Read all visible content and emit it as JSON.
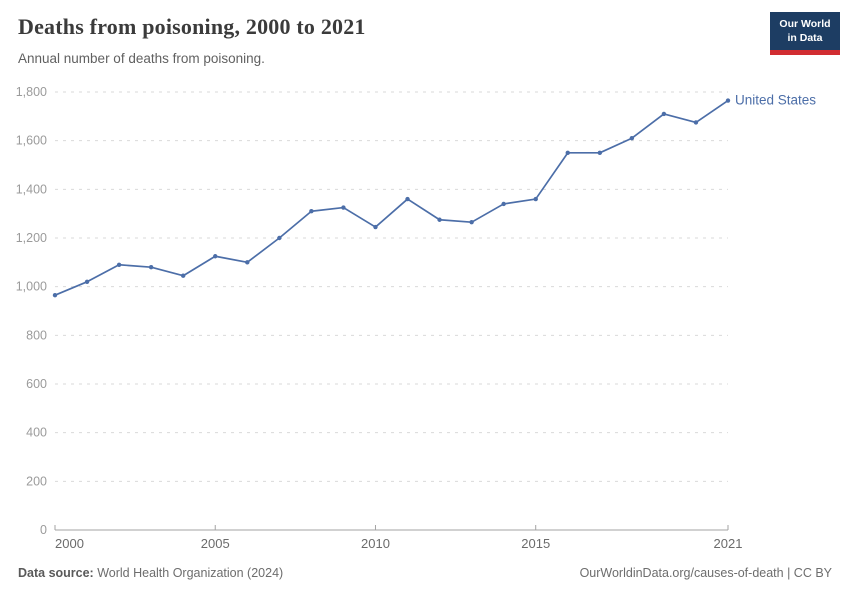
{
  "header": {
    "title": "Deaths from poisoning, 2000 to 2021",
    "subtitle": "Annual number of deaths from poisoning.",
    "logo": {
      "line1": "Our World",
      "line2": "in Data",
      "bg_color": "#1d3d63",
      "accent_color": "#d12d31"
    }
  },
  "chart_data": {
    "type": "line",
    "title": "Deaths from poisoning, 2000 to 2021",
    "x": [
      2000,
      2001,
      2002,
      2003,
      2004,
      2005,
      2006,
      2007,
      2008,
      2009,
      2010,
      2011,
      2012,
      2013,
      2014,
      2015,
      2016,
      2017,
      2018,
      2019,
      2020,
      2021
    ],
    "series": [
      {
        "name": "United States",
        "color": "#4c6ea8",
        "values": [
          965,
          1020,
          1090,
          1080,
          1045,
          1125,
          1100,
          1200,
          1310,
          1325,
          1245,
          1360,
          1275,
          1265,
          1340,
          1360,
          1550,
          1550,
          1610,
          1710,
          1675,
          1765
        ]
      }
    ],
    "xlabel": "",
    "ylabel": "",
    "ylim": [
      0,
      1800
    ],
    "yticks": [
      0,
      200,
      400,
      600,
      800,
      1000,
      1200,
      1400,
      1600,
      1800
    ],
    "xticks": [
      2000,
      2005,
      2010,
      2015,
      2021
    ],
    "grid": "horizontal-dashed",
    "legend": "end-of-line-label"
  },
  "footer": {
    "source_label": "Data source:",
    "source_text": " World Health Organization (2024)",
    "credit": "OurWorldinData.org/causes-of-death | CC BY"
  }
}
